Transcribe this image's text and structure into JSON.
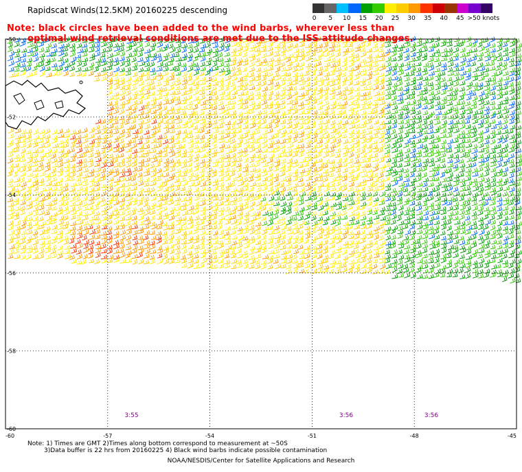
{
  "header": {
    "title": "Rapidscat Winds(12.5KM) 20160225 descending",
    "note_line1": "Note: black circles have been added to the wind barbs, wherever less than",
    "note_line2": "optimal wind retrieval conditions are met due to the ISS attitude changes."
  },
  "legend": {
    "labels": [
      "0",
      "5",
      "10",
      "15",
      "20",
      "25",
      "30",
      "35",
      "40",
      "45",
      ">50 knots"
    ],
    "colors": [
      "#333333",
      "#666666",
      "#00bfff",
      "#0066ff",
      "#00a000",
      "#33cc00",
      "#ffee00",
      "#ffcc00",
      "#ff9900",
      "#ff3300",
      "#cc0000",
      "#993300",
      "#cc00cc",
      "#7700cc",
      "#330066"
    ]
  },
  "map": {
    "lat_labels": [
      "-50",
      "-52",
      "-54",
      "-56",
      "-58",
      "-60"
    ],
    "lon_labels": [
      "-60",
      "-57",
      "-54",
      "-51",
      "-48",
      "-45"
    ],
    "time_labels": [
      {
        "text": "3:55",
        "lon": -56.3
      },
      {
        "text": "3:56",
        "lon": -50.0
      },
      {
        "text": "3:56",
        "lon": -47.5
      }
    ],
    "time_color": "#800080",
    "extent": {
      "lon": [
        -60,
        -45
      ],
      "lat": [
        -60,
        -50
      ]
    },
    "land": "Falkland Islands"
  },
  "footer": {
    "note_line1": "Note: 1) Times are GMT 2)Times along bottom correspond to measurement at ~50S",
    "note_line2": "3)Data buffer is 22 hrs from 20160225 4) Black wind barbs indicate possible contamination",
    "credit": "NOAA/NESDIS/Center for Satellite Applications and Research"
  }
}
